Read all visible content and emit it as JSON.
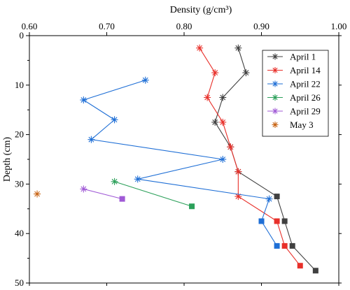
{
  "chart_data": {
    "type": "line",
    "xlabel": "Density (g/cm³)",
    "ylabel": "Depth (cm)",
    "x_axis_position": "top",
    "y_axis_inverted": true,
    "xlim": [
      0.6,
      1.0
    ],
    "ylim": [
      0,
      50
    ],
    "x_ticks": [
      "0.60",
      "0.70",
      "0.80",
      "0.90",
      "1.00"
    ],
    "y_ticks": [
      "0",
      "10",
      "20",
      "30",
      "40",
      "50"
    ],
    "x_tick_values": [
      0.6,
      0.7,
      0.8,
      0.9,
      1.0
    ],
    "y_tick_values": [
      0,
      10,
      20,
      30,
      40,
      50
    ],
    "grid": false,
    "legend_position": "top-right",
    "series": [
      {
        "name": "April 1",
        "color": "#404040",
        "points": [
          [
            0.87,
            2.5
          ],
          [
            0.88,
            7.5
          ],
          [
            0.85,
            12.5
          ],
          [
            0.84,
            17.5
          ],
          [
            0.86,
            22.5
          ],
          [
            0.87,
            27.5
          ],
          [
            0.92,
            32.5
          ],
          [
            0.93,
            37.5
          ],
          [
            0.94,
            42.5
          ],
          [
            0.97,
            47.5
          ]
        ],
        "square_from_index": 6
      },
      {
        "name": "April 14",
        "color": "#e8302a",
        "points": [
          [
            0.82,
            2.5
          ],
          [
            0.84,
            7.5
          ],
          [
            0.83,
            12.5
          ],
          [
            0.85,
            17.5
          ],
          [
            0.86,
            22.5
          ],
          [
            0.87,
            27.5
          ],
          [
            0.87,
            32.5
          ],
          [
            0.92,
            37.5
          ],
          [
            0.93,
            42.5
          ],
          [
            0.95,
            46.5
          ]
        ],
        "square_from_index": 7
      },
      {
        "name": "April 22",
        "color": "#1f6fd6",
        "points": [
          [
            0.75,
            9
          ],
          [
            0.67,
            13
          ],
          [
            0.71,
            17
          ],
          [
            0.68,
            21
          ],
          [
            0.85,
            25
          ],
          [
            0.74,
            29
          ],
          [
            0.91,
            33
          ],
          [
            0.9,
            37.5
          ],
          [
            0.92,
            42.5
          ]
        ],
        "square_from_index": 7
      },
      {
        "name": "April 26",
        "color": "#2ca05a",
        "points": [
          [
            0.71,
            29.5
          ],
          [
            0.81,
            34.5
          ]
        ],
        "square_from_index": 1
      },
      {
        "name": "April 29",
        "color": "#a05ad6",
        "points": [
          [
            0.67,
            31
          ],
          [
            0.72,
            33
          ]
        ],
        "square_from_index": 1
      },
      {
        "name": "May 3",
        "color": "#c86414",
        "points": [
          [
            0.61,
            32
          ]
        ],
        "square_from_index": 99,
        "marker_only": true
      }
    ]
  }
}
